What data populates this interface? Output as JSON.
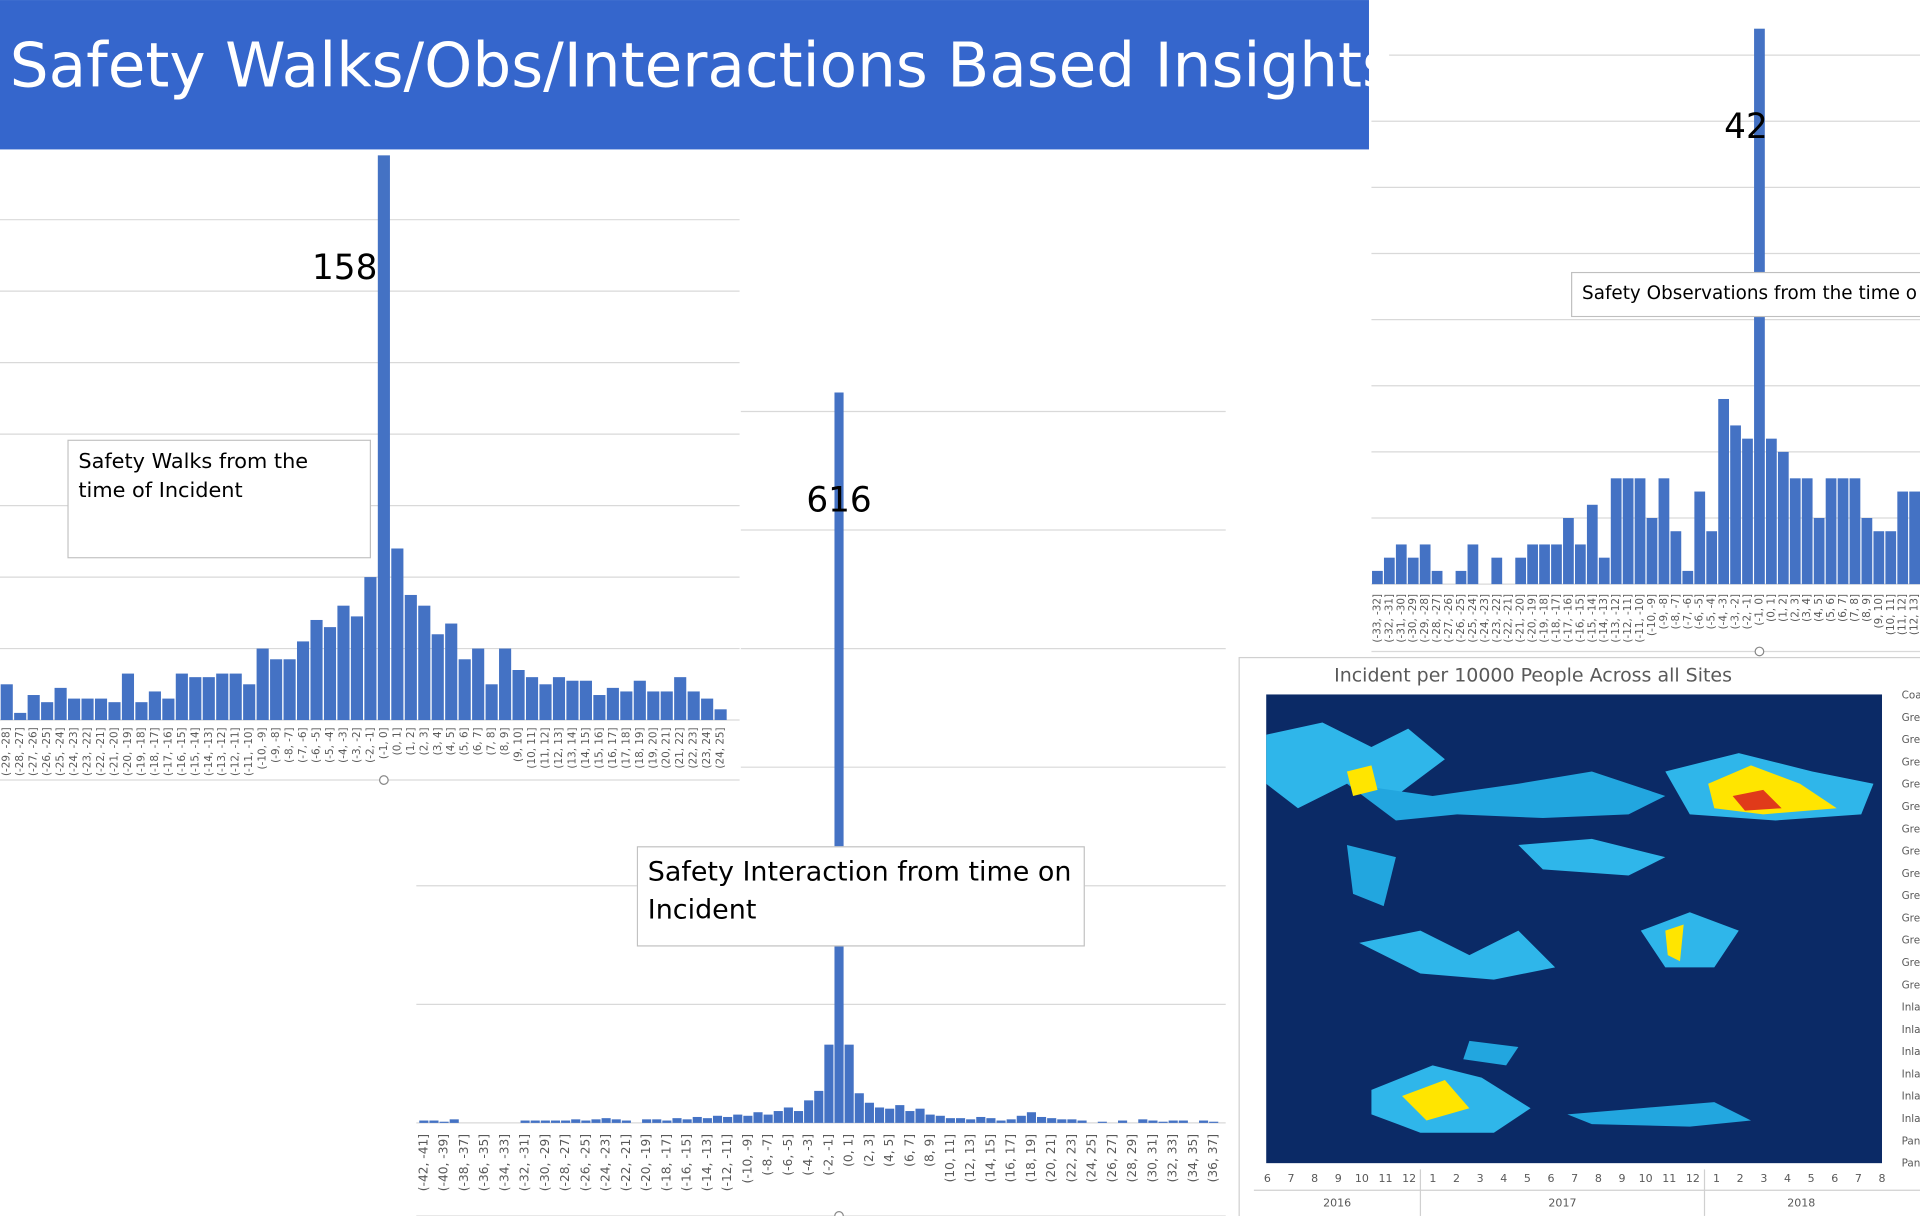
{
  "header": {
    "title": "Safety Walks/Obs/Interactions Based Insights"
  },
  "chart_data": [
    {
      "type": "bar",
      "color": "#4472c4",
      "grid": true,
      "note": "Safety Walks from the time of Incident",
      "categories": [
        "(-29, -28]",
        "(-28, -27]",
        "(-27, -26]",
        "(-26, -25]",
        "(-25, -24]",
        "(-24, -23]",
        "(-23, -22]",
        "(-22, -21]",
        "(-21, -20]",
        "(-20, -19]",
        "(-19, -18]",
        "(-18, -17]",
        "(-17, -16]",
        "(-16, -15]",
        "(-15, -14]",
        "(-14, -13]",
        "(-13, -12]",
        "(-12, -11]",
        "(-11, -10]",
        "(-10, -9]",
        "(-9, -8]",
        "(-8, -7]",
        "(-7, -6]",
        "(-6, -5]",
        "(-5, -4]",
        "(-4, -3]",
        "(-3, -2]",
        "(-2, -1]",
        "(-1, 0]",
        "(0, 1]",
        "(1, 2]",
        "(2, 3]",
        "(3, 4]",
        "(4, 5]",
        "(5, 6]",
        "(6, 7]",
        "(7, 8]",
        "(8, 9]",
        "(9, 10]",
        "(10, 11]",
        "(11, 12]",
        "(12, 13]",
        "(13, 14]",
        "(14, 15]",
        "(15, 16]",
        "(16, 17]",
        "(17, 18]",
        "(18, 19]",
        "(19, 20]",
        "(20, 21]",
        "(21, 22]",
        "(22, 23]",
        "(23, 24]",
        "(24, 25]"
      ],
      "values": [
        10,
        2,
        7,
        5,
        9,
        6,
        6,
        6,
        5,
        13,
        5,
        8,
        6,
        13,
        12,
        12,
        13,
        13,
        10,
        20,
        17,
        17,
        22,
        28,
        26,
        32,
        29,
        40,
        158,
        48,
        35,
        32,
        24,
        27,
        17,
        20,
        10,
        20,
        14,
        12,
        10,
        12,
        11,
        11,
        7,
        9,
        8,
        11,
        8,
        8,
        12,
        8,
        6,
        3
      ],
      "ylim": [
        0,
        160
      ],
      "yticks": [
        0,
        20,
        40,
        60,
        80,
        100,
        120,
        140
      ]
    },
    {
      "type": "bar",
      "color": "#4472c4",
      "grid": true,
      "note": "Safety Interaction from time on Incident",
      "categories": [
        "(-42, -41]",
        null,
        "(-40, -39]",
        null,
        "(-38, -37]",
        null,
        "(-36, -35]",
        null,
        "(-34, -33]",
        null,
        "(-32, -31]",
        null,
        "(-30, -29]",
        null,
        "(-28, -27]",
        null,
        "(-26, -25]",
        null,
        "(-24, -23]",
        null,
        "(-22, -21]",
        null,
        "(-20, -19]",
        null,
        "(-18, -17]",
        null,
        "(-16, -15]",
        null,
        "(-14, -13]",
        null,
        "(-12, -11]",
        null,
        "(-10, -9]",
        null,
        "(-8, -7]",
        null,
        "(-6, -5]",
        null,
        "(-4, -3]",
        null,
        "(-2, -1]",
        null,
        "(0, 1]",
        null,
        "(2, 3]",
        null,
        "(4, 5]",
        null,
        "(6, 7]",
        null,
        "(8, 9]",
        null,
        "(10, 11]",
        null,
        "(12, 13]",
        null,
        "(14, 15]",
        null,
        "(16, 17]",
        null,
        "(18, 19]",
        null,
        "(20, 21]",
        null,
        "(22, 23]",
        null,
        "(24, 25]",
        null,
        "(26, 27]",
        null,
        "(28, 29]",
        null,
        "(30, 31]",
        null,
        "(32, 33]",
        null,
        "(34, 35]",
        null,
        "(36, 37]"
      ],
      "values": [
        2,
        2,
        1,
        3,
        0,
        0,
        0,
        0,
        0,
        0,
        2,
        2,
        2,
        2,
        2,
        3,
        2,
        3,
        4,
        3,
        2,
        0,
        3,
        3,
        2,
        4,
        3,
        5,
        4,
        6,
        5,
        7,
        6,
        9,
        7,
        10,
        13,
        10,
        19,
        27,
        66,
        616,
        66,
        25,
        17,
        13,
        12,
        15,
        10,
        12,
        7,
        6,
        4,
        4,
        3,
        5,
        4,
        2,
        3,
        6,
        9,
        5,
        4,
        3,
        3,
        2,
        0,
        1,
        0,
        2,
        0,
        3,
        2,
        1,
        2,
        2,
        0,
        2,
        1
      ],
      "ylim": [
        0,
        600
      ],
      "yticks": [
        0,
        100,
        200,
        300,
        400,
        500,
        600
      ]
    },
    {
      "type": "bar",
      "color": "#4472c4",
      "grid": true,
      "note": "Safety Observations from the time o",
      "categories": [
        "(-33, -32]",
        "(-32, -31]",
        "(-31, -30]",
        "(-30, -29]",
        "(-29, -28]",
        "(-28, -27]",
        "(-27, -26]",
        "(-26, -25]",
        "(-25, -24]",
        "(-24, -23]",
        "(-23, -22]",
        "(-22, -21]",
        "(-21, -20]",
        "(-20, -19]",
        "(-19, -18]",
        "(-18, -17]",
        "(-17, -16]",
        "(-16, -15]",
        "(-15, -14]",
        "(-14, -13]",
        "(-13, -12]",
        "(-12, -11]",
        "(-11, -10]",
        "(-10, -9]",
        "(-9, -8]",
        "(-8, -7]",
        "(-7, -6]",
        "(-6, -5]",
        "(-5, -4]",
        "(-4, -3]",
        "(-3, -2]",
        "(-2, -1]",
        "(-1, 0]",
        "(0, 1]",
        "(1, 2]",
        "(2, 3]",
        "(3, 4]",
        "(4, 5]",
        "(5, 6]",
        "(6, 7]",
        "(7, 8]",
        "(8, 9]",
        "(9, 10]",
        "(10, 11]",
        "(11, 12]",
        "(12, 13]"
      ],
      "values": [
        1,
        2,
        3,
        2,
        3,
        1,
        0,
        1,
        3,
        0,
        2,
        0,
        2,
        3,
        3,
        3,
        5,
        3,
        6,
        2,
        8,
        8,
        8,
        5,
        8,
        4,
        1,
        7,
        4,
        14,
        12,
        11,
        42,
        11,
        10,
        8,
        8,
        5,
        8,
        8,
        8,
        5,
        4,
        4,
        7,
        7
      ],
      "ylim": [
        0,
        40
      ],
      "yticks": [
        0,
        5,
        10,
        15,
        20,
        25,
        30,
        35,
        40
      ]
    },
    {
      "type": "heatmap",
      "title": "Incident per 10000 People Across all Sites",
      "x_labels": [
        6,
        7,
        8,
        9,
        10,
        11,
        12,
        1,
        2,
        3,
        4,
        5,
        6,
        7,
        8,
        9,
        10,
        11,
        12,
        1,
        2,
        3,
        4,
        5,
        6,
        7,
        8
      ],
      "x_groups": [
        2016,
        2017,
        2018
      ],
      "y_labels": [
        "Coa",
        "Gre",
        "Gre",
        "Gre",
        "Gre",
        "Gre",
        "Gre",
        "Gre",
        "Gre",
        "Gre",
        "Gre",
        "Gre",
        "Gre",
        "Gre",
        "Inla",
        "Inla",
        "Inla",
        "Inla",
        "Inla",
        "Inla",
        "Pan",
        "Pan"
      ]
    }
  ]
}
